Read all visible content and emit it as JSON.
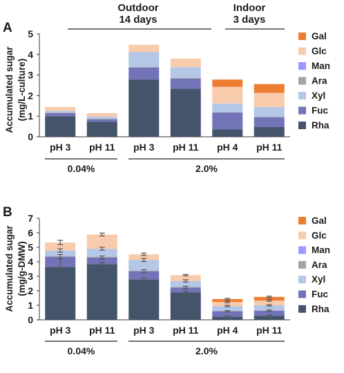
{
  "colors": {
    "Gal": "#ed7d31",
    "Glc": "#f8cbad",
    "Man": "#9999ff",
    "Ara": "#a5a5a5",
    "Xyl": "#b4c7e7",
    "Fuc": "#7373b8",
    "Rha": "#44546a"
  },
  "header": {
    "outdoor_line1": "Outdoor",
    "outdoor_line2": "14 days",
    "indoor_line1": "Indoor",
    "indoor_line2": "3 days"
  },
  "chart_data": [
    {
      "type": "bar",
      "stacked": true,
      "panel_label": "A",
      "ylabel_line1": "Accumulated sugar",
      "ylabel_line2": "(mg/L-culture)",
      "ylim": [
        0,
        5
      ],
      "yticks": [
        "0",
        "1",
        "2",
        "3",
        "4",
        "5"
      ],
      "categories": [
        "pH 3",
        "pH 11",
        "pH 3",
        "pH 11",
        "pH 4",
        "pH 11"
      ],
      "groups": [
        {
          "label": "0.04%",
          "from": 0,
          "to": 1
        },
        {
          "label": "2.0%",
          "from": 2,
          "to": 5
        }
      ],
      "legend": [
        "Gal",
        "Glc",
        "Man",
        "Ara",
        "Xyl",
        "Fuc",
        "Rha"
      ],
      "error_bars": false,
      "series": [
        {
          "name": "Rha",
          "values": [
            1.0,
            0.72,
            2.78,
            2.33,
            0.35,
            0.47
          ]
        },
        {
          "name": "Fuc",
          "values": [
            0.15,
            0.13,
            0.58,
            0.5,
            0.83,
            0.48
          ]
        },
        {
          "name": "Ara",
          "values": [
            0.03,
            0.03,
            0.03,
            0.03,
            0.02,
            0.02
          ]
        },
        {
          "name": "Xyl",
          "values": [
            0.08,
            0.1,
            0.72,
            0.52,
            0.42,
            0.48
          ]
        },
        {
          "name": "Man",
          "values": [
            0.0,
            0.0,
            0.0,
            0.0,
            0.0,
            0.0
          ]
        },
        {
          "name": "Glc",
          "values": [
            0.19,
            0.17,
            0.36,
            0.42,
            0.81,
            0.68
          ]
        },
        {
          "name": "Gal",
          "values": [
            0.0,
            0.0,
            0.0,
            0.0,
            0.35,
            0.43
          ]
        }
      ]
    },
    {
      "type": "bar",
      "stacked": true,
      "panel_label": "B",
      "ylabel_line1": "Accumulated sugar",
      "ylabel_line2": "(mg/g-DMW)",
      "ylim": [
        0,
        7
      ],
      "yticks": [
        "0",
        "1",
        "2",
        "3",
        "4",
        "5",
        "6",
        "7"
      ],
      "categories": [
        "pH 3",
        "pH 11",
        "pH 3",
        "pH 11",
        "pH 4",
        "pH 11"
      ],
      "groups": [
        {
          "label": "0.04%",
          "from": 0,
          "to": 1
        },
        {
          "label": "2.0%",
          "from": 2,
          "to": 5
        }
      ],
      "legend": [
        "Gal",
        "Glc",
        "Man",
        "Ara",
        "Xyl",
        "Fuc",
        "Rha"
      ],
      "error_bars": true,
      "series": [
        {
          "name": "Rha",
          "values": [
            3.65,
            3.83,
            2.78,
            1.88,
            0.22,
            0.28
          ]
        },
        {
          "name": "Fuc",
          "values": [
            0.7,
            0.47,
            0.57,
            0.35,
            0.37,
            0.35
          ]
        },
        {
          "name": "Ara",
          "values": [
            0.05,
            0.05,
            0.05,
            0.03,
            0.03,
            0.03
          ]
        },
        {
          "name": "Xyl",
          "values": [
            0.38,
            0.55,
            0.72,
            0.42,
            0.33,
            0.34
          ]
        },
        {
          "name": "Man",
          "values": [
            0.0,
            0.0,
            0.0,
            0.0,
            0.0,
            0.0
          ]
        },
        {
          "name": "Glc",
          "values": [
            0.55,
            0.98,
            0.4,
            0.4,
            0.28,
            0.33
          ]
        },
        {
          "name": "Gal",
          "values": [
            0.0,
            0.0,
            0.0,
            0.0,
            0.2,
            0.25
          ]
        }
      ],
      "errors": [
        [
          0.55,
          0.12,
          0.12,
          0.1,
          0.05,
          0.05
        ],
        [
          0.15,
          0.1,
          0.1,
          0.08,
          0.05,
          0.05
        ],
        [
          0.0,
          0.0,
          0.0,
          0.0,
          0.0,
          0.0
        ],
        [
          0.12,
          0.1,
          0.1,
          0.08,
          0.05,
          0.05
        ],
        [
          0.0,
          0.0,
          0.0,
          0.0,
          0.0,
          0.0
        ],
        [
          0.15,
          0.1,
          0.08,
          0.05,
          0.05,
          0.05
        ],
        [
          0.0,
          0.0,
          0.0,
          0.0,
          0.05,
          0.05
        ]
      ]
    }
  ]
}
